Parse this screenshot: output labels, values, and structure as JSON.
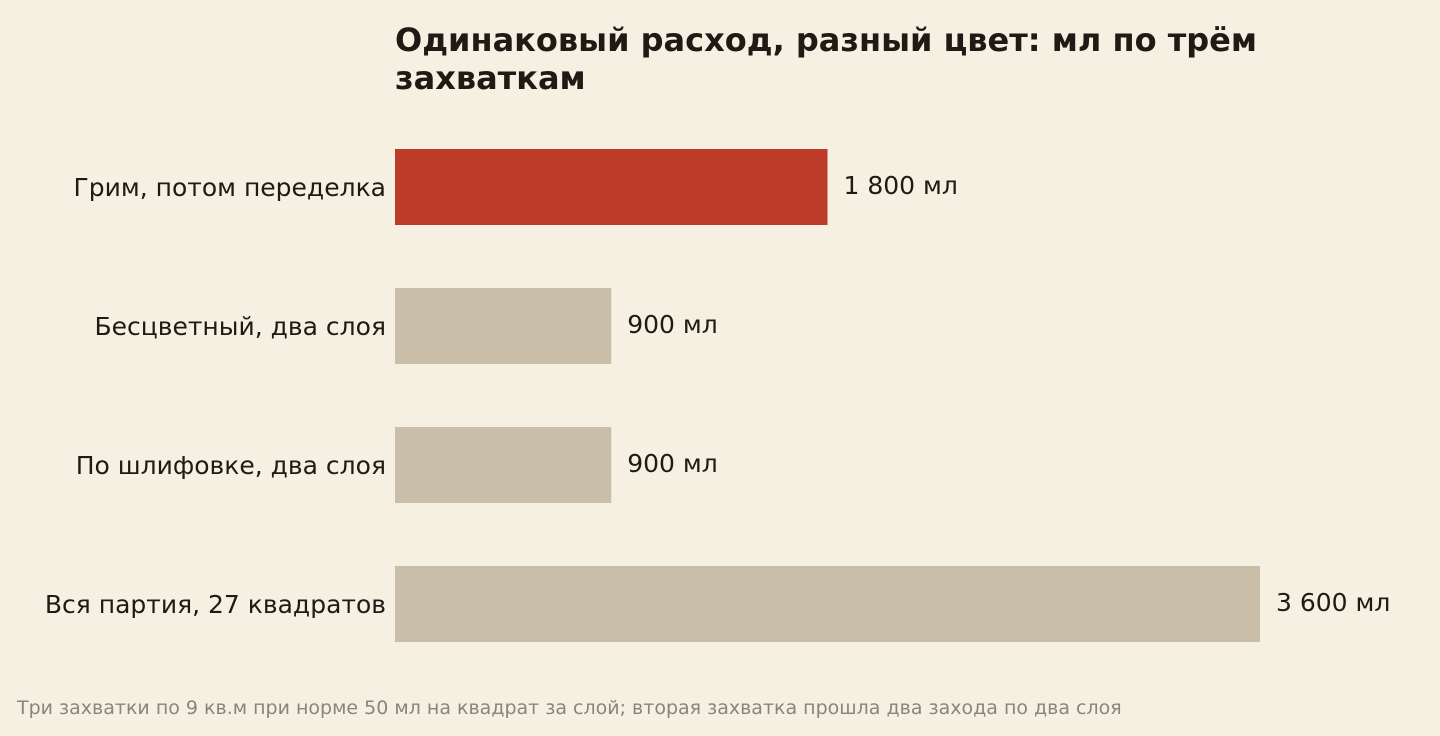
{
  "chart_data": {
    "type": "bar",
    "orientation": "horizontal",
    "title": "Одинаковый расход, разный цвет: мл по трём захваткам",
    "categories": [
      "Грим, потом переделка",
      "Бесцветный, два слоя",
      "По шлифовке, два слоя",
      "Вся партия, 27 квадратов"
    ],
    "values": [
      1800,
      900,
      900,
      3600
    ],
    "value_labels": [
      "1 800 мл",
      "900 мл",
      "900 мл",
      "3 600 мл"
    ],
    "highlight_index": 0,
    "xlim": [
      0,
      3600
    ],
    "grid": false,
    "colors": {
      "highlight": "#bd3c28",
      "default": "#c9bfa8",
      "background": "#f6f0e3",
      "text": "#1e1a14",
      "footnote": "#8a847a"
    }
  },
  "footnote": "Три захватки по 9 кв.м при норме 50 мл на квадрат за слой; вторая захватка прошла два захода по два слоя"
}
